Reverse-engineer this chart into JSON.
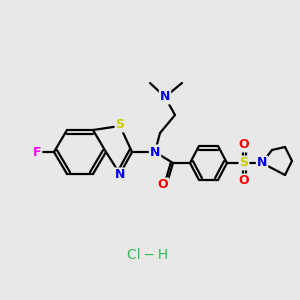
{
  "bg_color": "#e8e8e8",
  "atom_colors": {
    "C": "#000000",
    "N": "#0000ee",
    "O": "#ff0000",
    "S_thiazole": "#cccc00",
    "S_sulfonyl": "#cccc00",
    "F": "#ff00ff",
    "Cl": "#33bb55"
  },
  "hcl_text": "Cl - H",
  "hcl_color": "#33bb55",
  "figsize": [
    3.0,
    3.0
  ],
  "dpi": 100,
  "lw": 1.6
}
